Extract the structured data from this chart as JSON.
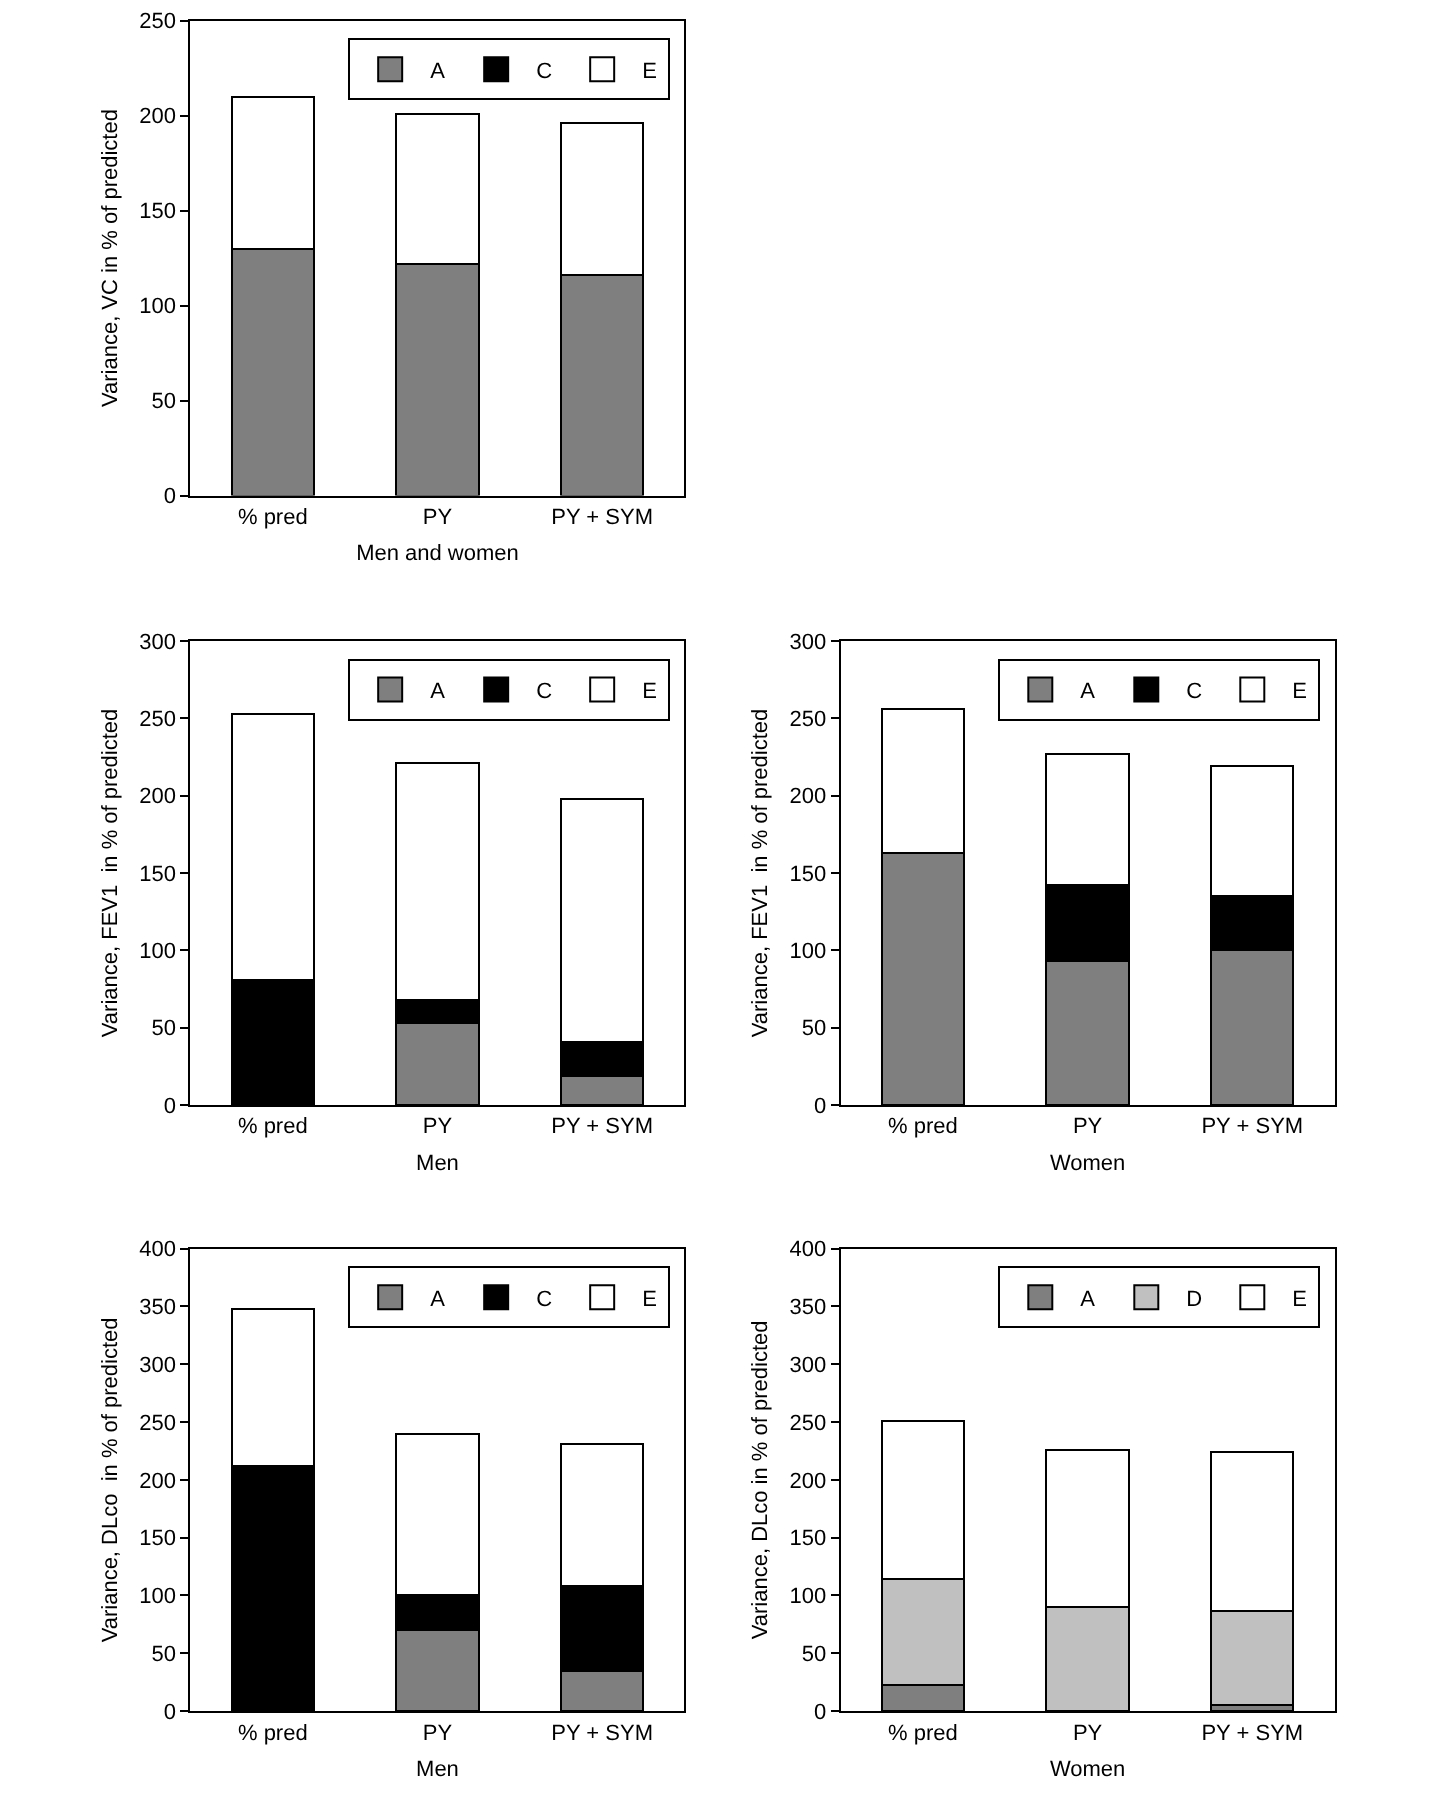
{
  "chart_data": [
    {
      "type": "bar",
      "stacked": true,
      "ylabel": "Variance, VC in % of predicted",
      "xlabel": "Men and women",
      "categories": [
        "% pred",
        "PY",
        "PY + SYM"
      ],
      "ylim": [
        0,
        250
      ],
      "yticks": [
        0,
        50,
        100,
        150,
        200,
        250
      ],
      "grid": false,
      "legend": "top right",
      "series": [
        {
          "name": "A",
          "color": "#7f7f7f",
          "values": [
            130,
            122,
            116
          ]
        },
        {
          "name": "C",
          "color": "#000000",
          "values": [
            0,
            0,
            0
          ]
        },
        {
          "name": "E",
          "color": "#ffffff",
          "values": [
            80,
            79,
            80
          ]
        }
      ]
    },
    {
      "type": "bar",
      "stacked": true,
      "ylabel": "Variance, FEV1  in % of predicted",
      "xlabel": "Men",
      "categories": [
        "% pred",
        "PY",
        "PY + SYM"
      ],
      "ylim": [
        0,
        300
      ],
      "yticks": [
        0,
        50,
        100,
        150,
        200,
        250,
        300
      ],
      "grid": false,
      "legend": "top right",
      "series": [
        {
          "name": "A",
          "color": "#7f7f7f",
          "values": [
            0,
            53,
            19
          ]
        },
        {
          "name": "C",
          "color": "#000000",
          "values": [
            81,
            15,
            22
          ]
        },
        {
          "name": "E",
          "color": "#ffffff",
          "values": [
            172,
            153,
            157
          ]
        }
      ]
    },
    {
      "type": "bar",
      "stacked": true,
      "ylabel": "Variance, FEV1  in % of predicted",
      "xlabel": "Women",
      "categories": [
        "% pred",
        "PY",
        "PY + SYM"
      ],
      "ylim": [
        0,
        300
      ],
      "yticks": [
        0,
        50,
        100,
        150,
        200,
        250,
        300
      ],
      "grid": false,
      "legend": "top right",
      "series": [
        {
          "name": "A",
          "color": "#7f7f7f",
          "values": [
            163,
            93,
            100
          ]
        },
        {
          "name": "C",
          "color": "#000000",
          "values": [
            0,
            49,
            35
          ]
        },
        {
          "name": "E",
          "color": "#ffffff",
          "values": [
            93,
            85,
            84
          ]
        }
      ]
    },
    {
      "type": "bar",
      "stacked": true,
      "ylabel": "Variance, DLco  in % of predicted",
      "xlabel": "Men",
      "categories": [
        "% pred",
        "PY",
        "PY + SYM"
      ],
      "ylim": [
        0,
        400
      ],
      "yticks": [
        0,
        50,
        100,
        150,
        200,
        250,
        300,
        350,
        400
      ],
      "grid": false,
      "legend": "top right",
      "series": [
        {
          "name": "A",
          "color": "#7f7f7f",
          "values": [
            0,
            70,
            35
          ]
        },
        {
          "name": "C",
          "color": "#000000",
          "values": [
            212,
            30,
            73
          ]
        },
        {
          "name": "E",
          "color": "#ffffff",
          "values": [
            136,
            140,
            123
          ]
        }
      ]
    },
    {
      "type": "bar",
      "stacked": true,
      "ylabel": "Variance, DLco in % of predicted",
      "xlabel": "Women",
      "categories": [
        "% pred",
        "PY",
        "PY + SYM"
      ],
      "ylim": [
        0,
        400
      ],
      "yticks": [
        0,
        50,
        100,
        150,
        200,
        250,
        300,
        350,
        400
      ],
      "grid": false,
      "legend": "top right",
      "series": [
        {
          "name": "A",
          "color": "#7f7f7f",
          "values": [
            23,
            0,
            5
          ]
        },
        {
          "name": "D",
          "color": "#c0c0c0",
          "values": [
            91,
            90,
            82
          ]
        },
        {
          "name": "E",
          "color": "#ffffff",
          "values": [
            137,
            136,
            137
          ]
        }
      ]
    }
  ]
}
